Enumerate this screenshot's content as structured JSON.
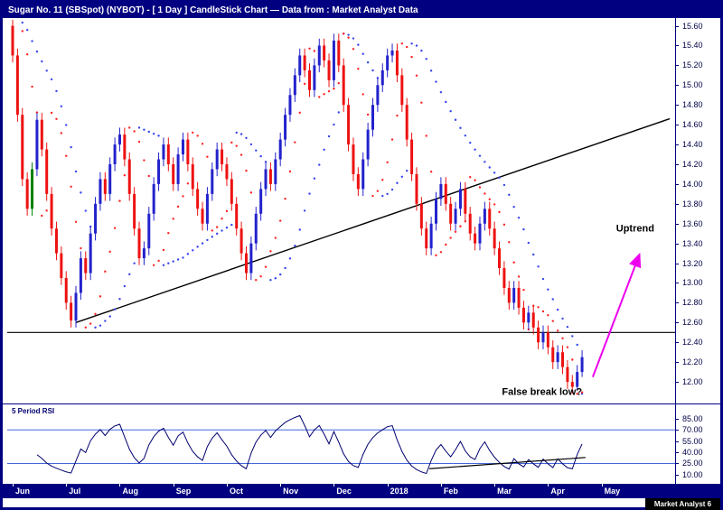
{
  "window": {
    "title": "Sugar No. 11 (SBSpot) (NYBOT) -  [ 1 Day ] CandleStick Chart — Data from : Market Analyst Data"
  },
  "watermark": "Market Analyst 6",
  "colors": {
    "navy": "#000080",
    "up_candle": "#2222cc",
    "down_candle": "#ee1111",
    "green_candle": "#008000",
    "sar_fast": "#ff2222",
    "sar_slow": "#3344ee",
    "trendline": "#000000",
    "arrow": "#ee00ee",
    "rsi_line": "#000070",
    "rsi_hline": "#4466dd",
    "axis_text": "#00004a",
    "annotation_text": "#000000"
  },
  "chart_data": {
    "type": "candlestick",
    "title": "Sugar No. 11 (SBSpot) (NYBOT) -  [ 1 Day ] CandleStick Chart — Data from : Market Analyst Data",
    "instrument": "Sugar No. 11 (SBSpot) (NYBOT)",
    "interval": "1 Day",
    "value_range": [
      11.8,
      15.66
    ],
    "y_axis": {
      "ticks": [
        15.6,
        15.4,
        15.2,
        15.0,
        14.8,
        14.6,
        14.4,
        14.2,
        14.0,
        13.8,
        13.6,
        13.4,
        13.2,
        13.0,
        12.8,
        12.6,
        12.4,
        12.2,
        12.0
      ]
    },
    "x_axis": {
      "labels": [
        "Jun",
        "Jul",
        "Aug",
        "Sep",
        "Oct",
        "Nov",
        "Dec",
        "2018",
        "Feb",
        "Mar",
        "Apr",
        "May"
      ],
      "tick_indices": [
        0,
        11,
        22,
        33,
        44,
        55,
        66,
        77,
        88,
        99,
        110,
        121
      ],
      "index_range": [
        0,
        135
      ]
    },
    "green_candle_index": 4,
    "candles": [
      [
        15.6,
        15.67,
        15.23,
        15.3
      ],
      [
        15.3,
        15.37,
        14.63,
        14.7
      ],
      [
        14.7,
        14.77,
        13.98,
        14.05
      ],
      [
        14.05,
        14.12,
        13.68,
        13.75
      ],
      [
        13.75,
        14.22,
        13.68,
        14.15
      ],
      [
        14.15,
        14.72,
        14.08,
        14.65
      ],
      [
        14.65,
        14.72,
        14.28,
        14.35
      ],
      [
        14.35,
        14.42,
        13.83,
        13.9
      ],
      [
        13.9,
        13.97,
        13.48,
        13.55
      ],
      [
        13.55,
        13.62,
        13.23,
        13.3
      ],
      [
        13.3,
        13.37,
        12.98,
        13.05
      ],
      [
        13.05,
        13.12,
        12.73,
        12.8
      ],
      [
        12.8,
        12.87,
        12.55,
        12.62
      ],
      [
        12.62,
        12.97,
        12.55,
        12.9
      ],
      [
        12.9,
        13.32,
        12.83,
        13.25
      ],
      [
        13.25,
        13.32,
        13.03,
        13.1
      ],
      [
        13.1,
        13.57,
        13.03,
        13.5
      ],
      [
        13.5,
        13.87,
        13.43,
        13.8
      ],
      [
        13.8,
        14.12,
        13.73,
        14.05
      ],
      [
        14.05,
        14.12,
        13.83,
        13.9
      ],
      [
        13.9,
        14.27,
        13.83,
        14.2
      ],
      [
        14.2,
        14.47,
        14.13,
        14.4
      ],
      [
        14.4,
        14.57,
        14.33,
        14.5
      ],
      [
        14.5,
        14.57,
        14.18,
        14.25
      ],
      [
        14.25,
        14.32,
        13.83,
        13.9
      ],
      [
        13.9,
        13.97,
        13.48,
        13.55
      ],
      [
        13.55,
        13.62,
        13.18,
        13.25
      ],
      [
        13.25,
        13.42,
        13.18,
        13.35
      ],
      [
        13.35,
        13.77,
        13.28,
        13.7
      ],
      [
        13.7,
        14.07,
        13.63,
        14.0
      ],
      [
        14.0,
        14.32,
        13.93,
        14.25
      ],
      [
        14.25,
        14.47,
        14.18,
        14.4
      ],
      [
        14.4,
        14.47,
        14.13,
        14.2
      ],
      [
        14.2,
        14.27,
        13.93,
        14.0
      ],
      [
        14.0,
        14.37,
        13.93,
        14.3
      ],
      [
        14.3,
        14.52,
        14.23,
        14.45
      ],
      [
        14.45,
        14.52,
        14.13,
        14.2
      ],
      [
        14.2,
        14.27,
        13.88,
        13.95
      ],
      [
        13.95,
        14.02,
        13.68,
        13.75
      ],
      [
        13.75,
        13.82,
        13.53,
        13.6
      ],
      [
        13.6,
        13.97,
        13.53,
        13.9
      ],
      [
        13.9,
        14.22,
        13.83,
        14.15
      ],
      [
        14.15,
        14.42,
        14.08,
        14.35
      ],
      [
        14.35,
        14.42,
        14.13,
        14.2
      ],
      [
        14.2,
        14.27,
        13.98,
        14.05
      ],
      [
        14.05,
        14.12,
        13.73,
        13.8
      ],
      [
        13.8,
        13.87,
        13.48,
        13.55
      ],
      [
        13.55,
        13.62,
        13.23,
        13.3
      ],
      [
        13.3,
        13.37,
        13.03,
        13.1
      ],
      [
        13.1,
        13.47,
        13.03,
        13.4
      ],
      [
        13.4,
        13.77,
        13.33,
        13.7
      ],
      [
        13.7,
        14.02,
        13.63,
        13.95
      ],
      [
        13.95,
        14.22,
        13.88,
        14.15
      ],
      [
        14.15,
        14.22,
        13.93,
        14.0
      ],
      [
        14.0,
        14.32,
        13.93,
        14.25
      ],
      [
        14.25,
        14.52,
        14.18,
        14.45
      ],
      [
        14.45,
        14.77,
        14.38,
        14.7
      ],
      [
        14.7,
        14.97,
        14.63,
        14.9
      ],
      [
        14.9,
        15.17,
        14.83,
        15.1
      ],
      [
        15.1,
        15.37,
        15.03,
        15.3
      ],
      [
        15.3,
        15.37,
        15.08,
        15.15
      ],
      [
        15.15,
        15.22,
        14.88,
        14.95
      ],
      [
        14.95,
        15.27,
        14.88,
        15.2
      ],
      [
        15.2,
        15.47,
        15.13,
        15.4
      ],
      [
        15.4,
        15.47,
        15.18,
        15.25
      ],
      [
        15.25,
        15.32,
        14.98,
        15.05
      ],
      [
        15.05,
        15.52,
        14.98,
        15.45
      ],
      [
        15.45,
        15.52,
        15.13,
        15.2
      ],
      [
        15.2,
        15.27,
        14.73,
        14.8
      ],
      [
        14.8,
        14.87,
        14.33,
        14.4
      ],
      [
        14.4,
        14.47,
        14.03,
        14.1
      ],
      [
        14.1,
        14.17,
        13.88,
        13.95
      ],
      [
        13.95,
        14.32,
        13.88,
        14.25
      ],
      [
        14.25,
        14.62,
        14.18,
        14.55
      ],
      [
        14.55,
        14.87,
        14.48,
        14.8
      ],
      [
        14.8,
        15.07,
        14.73,
        15.0
      ],
      [
        15.0,
        15.22,
        14.93,
        15.15
      ],
      [
        15.15,
        15.37,
        15.08,
        15.3
      ],
      [
        15.3,
        15.42,
        15.23,
        15.35
      ],
      [
        15.35,
        15.42,
        15.03,
        15.1
      ],
      [
        15.1,
        15.17,
        14.73,
        14.8
      ],
      [
        14.8,
        14.87,
        14.38,
        14.45
      ],
      [
        14.45,
        14.52,
        14.03,
        14.1
      ],
      [
        14.1,
        14.17,
        13.73,
        13.8
      ],
      [
        13.8,
        13.87,
        13.48,
        13.55
      ],
      [
        13.55,
        13.62,
        13.28,
        13.35
      ],
      [
        13.35,
        13.67,
        13.28,
        13.6
      ],
      [
        13.6,
        13.92,
        13.53,
        13.85
      ],
      [
        13.85,
        14.07,
        13.78,
        14.0
      ],
      [
        14.0,
        14.07,
        13.73,
        13.8
      ],
      [
        13.8,
        13.87,
        13.53,
        13.6
      ],
      [
        13.6,
        13.82,
        13.53,
        13.75
      ],
      [
        13.75,
        14.02,
        13.68,
        13.95
      ],
      [
        13.95,
        14.02,
        13.63,
        13.7
      ],
      [
        13.7,
        13.77,
        13.43,
        13.5
      ],
      [
        13.5,
        13.57,
        13.33,
        13.4
      ],
      [
        13.4,
        13.67,
        13.33,
        13.6
      ],
      [
        13.6,
        13.82,
        13.53,
        13.75
      ],
      [
        13.75,
        13.82,
        13.48,
        13.55
      ],
      [
        13.55,
        13.62,
        13.28,
        13.35
      ],
      [
        13.35,
        13.42,
        13.08,
        13.15
      ],
      [
        13.15,
        13.22,
        12.88,
        12.95
      ],
      [
        12.95,
        13.02,
        12.73,
        12.8
      ],
      [
        12.8,
        13.02,
        12.73,
        12.95
      ],
      [
        12.95,
        13.02,
        12.68,
        12.75
      ],
      [
        12.75,
        12.82,
        12.53,
        12.6
      ],
      [
        12.6,
        12.77,
        12.53,
        12.7
      ],
      [
        12.7,
        12.77,
        12.48,
        12.55
      ],
      [
        12.55,
        12.62,
        12.33,
        12.4
      ],
      [
        12.4,
        12.57,
        12.33,
        12.5
      ],
      [
        12.5,
        12.57,
        12.28,
        12.35
      ],
      [
        12.35,
        12.42,
        12.13,
        12.2
      ],
      [
        12.2,
        12.37,
        12.13,
        12.3
      ],
      [
        12.3,
        12.37,
        12.08,
        12.15
      ],
      [
        12.15,
        12.22,
        11.93,
        12.0
      ],
      [
        12.0,
        12.07,
        11.88,
        11.95
      ],
      [
        11.95,
        12.17,
        11.91,
        12.1
      ],
      [
        12.1,
        12.32,
        12.05,
        12.25
      ]
    ],
    "support_line": {
      "value": 12.5
    },
    "trendline": {
      "from": [
        13,
        12.6
      ],
      "to": [
        135,
        14.66
      ]
    },
    "arrow": {
      "from": [
        119.2,
        12.05
      ],
      "to": [
        128.8,
        13.29
      ],
      "label": "Uptrend",
      "label_pos": [
        124.0,
        13.52
      ]
    },
    "annotation": {
      "text": "False break low?",
      "pos": [
        117,
        11.87
      ],
      "anchor": "end"
    },
    "sar": {
      "fast": [
        0.05,
        0.5
      ],
      "slow": [
        0.015,
        0.15
      ]
    },
    "rsi": {
      "label": "5 Period RSI",
      "period": 5,
      "range": [
        5,
        92
      ],
      "ticks": [
        85.0,
        70.0,
        55.0,
        40.0,
        25.0,
        10.0
      ],
      "hlines": [
        70,
        25
      ],
      "trendline": {
        "from": [
          85.6,
          18
        ],
        "to": [
          117.7,
          33
        ]
      }
    }
  }
}
